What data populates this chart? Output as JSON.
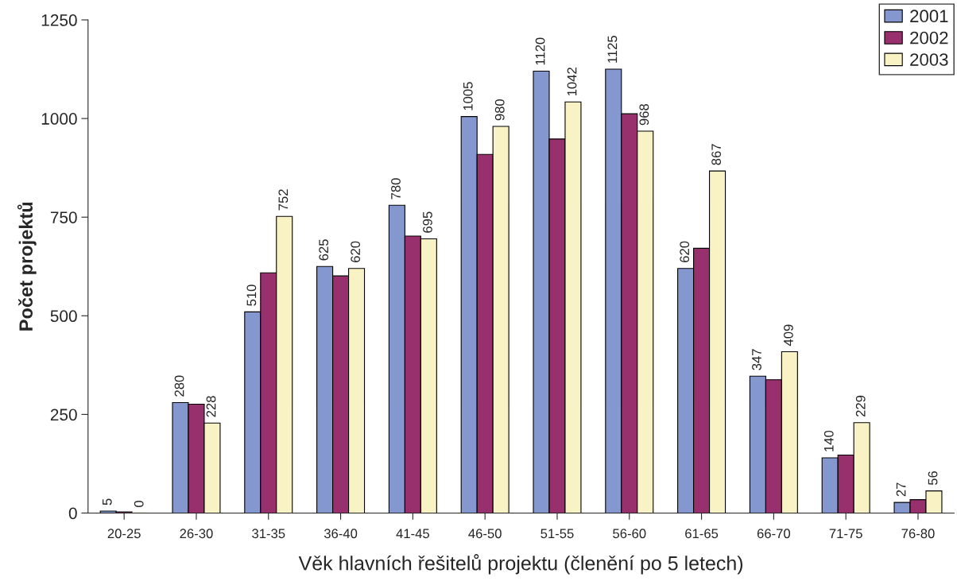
{
  "chart_data": {
    "type": "bar",
    "xlabel": "Věk hlavních řešitelů projektu (členění po 5 letech)",
    "ylabel": "Počet projektů",
    "categories": [
      "20-25",
      "26-30",
      "31-35",
      "36-40",
      "41-45",
      "46-50",
      "51-55",
      "56-60",
      "61-65",
      "66-70",
      "71-75",
      "76-80"
    ],
    "series": [
      {
        "name": "2001",
        "color": "#8597cf",
        "values": [
          5,
          280,
          510,
          625,
          780,
          1005,
          1120,
          1125,
          620,
          347,
          140,
          27
        ],
        "value_labels": [
          "5",
          "280",
          "510",
          "625",
          "780",
          "1005",
          "1120",
          "1125",
          "620",
          "347",
          "140",
          "27"
        ]
      },
      {
        "name": "2002",
        "color": "#97306c",
        "values": [
          3,
          276,
          609,
          601,
          702,
          909,
          948,
          1012,
          671,
          338,
          147,
          34
        ]
      },
      {
        "name": "2003",
        "color": "#f8f2c4",
        "values": [
          0,
          228,
          752,
          620,
          695,
          980,
          1042,
          968,
          867,
          409,
          229,
          56
        ],
        "value_labels": [
          "0",
          "228",
          "752",
          "620",
          "695",
          "980",
          "1042",
          "968",
          "867",
          "409",
          "229",
          "56"
        ]
      }
    ],
    "ylim": [
      0,
      1250
    ],
    "yticks": [
      0,
      250,
      500,
      750,
      1000,
      1250
    ],
    "grid": false,
    "legend": "top right"
  }
}
